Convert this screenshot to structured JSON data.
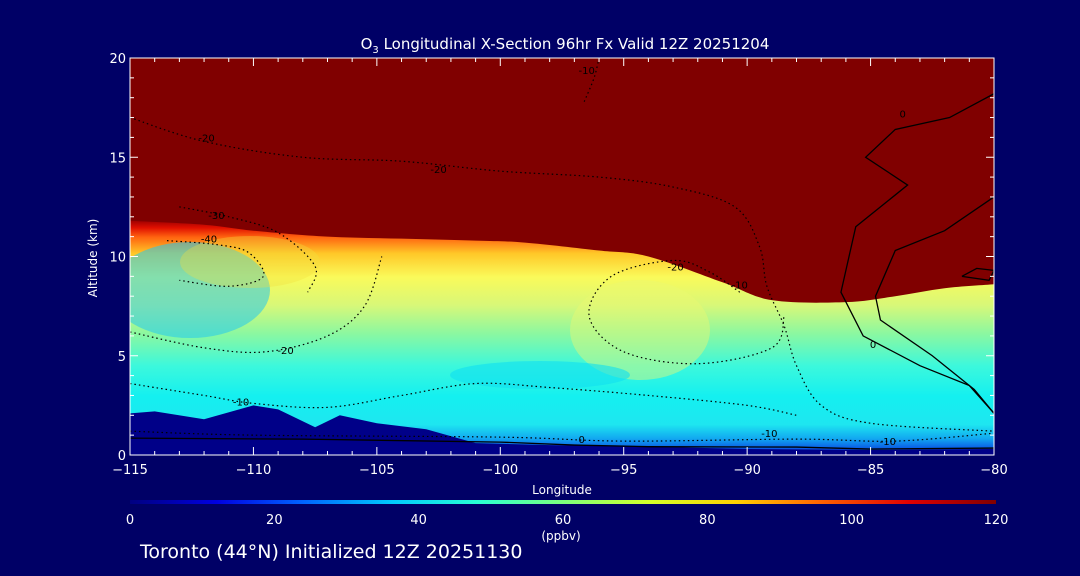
{
  "chart_data": {
    "type": "heatmap",
    "title_prefix": "O",
    "title_sub": "3",
    "title_rest": " Longitudinal X-Section 96hr  Fx Valid 12Z 20251204",
    "xlabel": "Longitude",
    "ylabel": "Altitude (km)",
    "xlim": [
      -115,
      -80
    ],
    "ylim": [
      0,
      20
    ],
    "x_ticks": [
      "-115",
      "-110",
      "-105",
      "-100",
      "-95",
      "-90",
      "-85",
      "-80"
    ],
    "x_tick_values": [
      -115,
      -110,
      -105,
      -100,
      -95,
      -90,
      -85,
      -80
    ],
    "y_ticks": [
      "0",
      "5",
      "10",
      "15",
      "20"
    ],
    "y_tick_values": [
      0,
      5,
      10,
      15,
      20
    ],
    "colorbar": {
      "min": 0,
      "max": 120,
      "ticks": [
        "0",
        "20",
        "40",
        "60",
        "80",
        "100",
        "120"
      ],
      "tick_values": [
        0,
        20,
        40,
        60,
        80,
        100,
        120
      ],
      "label": "(ppbv)"
    },
    "colors": {
      "background": "#000066",
      "terrain": "#000088",
      "stratosphere": "#800000"
    },
    "tropopause_height_km": [
      [
        -115,
        11.8
      ],
      [
        -112,
        11.6
      ],
      [
        -110,
        11.3
      ],
      [
        -107,
        11.0
      ],
      [
        -104,
        10.9
      ],
      [
        -101,
        10.8
      ],
      [
        -99,
        10.7
      ],
      [
        -96,
        10.3
      ],
      [
        -94,
        10.0
      ],
      [
        -91,
        8.7
      ],
      [
        -89,
        7.8
      ],
      [
        -86,
        7.7
      ],
      [
        -84,
        8.0
      ],
      [
        -82,
        8.4
      ],
      [
        -80,
        8.6
      ]
    ],
    "terrain_height_km": [
      [
        -115,
        2.1
      ],
      [
        -114,
        2.2
      ],
      [
        -112,
        1.8
      ],
      [
        -110,
        2.5
      ],
      [
        -109,
        2.3
      ],
      [
        -107.5,
        1.4
      ],
      [
        -106.5,
        2.0
      ],
      [
        -105,
        1.6
      ],
      [
        -103,
        1.3
      ],
      [
        -101,
        0.6
      ],
      [
        -98,
        0.5
      ],
      [
        -95,
        0.45
      ],
      [
        -90,
        0.3
      ],
      [
        -85,
        0.25
      ],
      [
        -80,
        0.3
      ]
    ],
    "contour_labels": [
      {
        "text": "-10",
        "lon": -96.5,
        "alt": 19.2
      },
      {
        "text": "-20",
        "lon": -111.9,
        "alt": 15.8
      },
      {
        "text": "-20",
        "lon": -102.5,
        "alt": 14.2
      },
      {
        "text": "-30",
        "lon": -111.5,
        "alt": 11.9
      },
      {
        "text": "-40",
        "lon": -111.8,
        "alt": 10.7
      },
      {
        "text": "-20",
        "lon": -108.7,
        "alt": 5.1
      },
      {
        "text": "-10",
        "lon": -110.5,
        "alt": 2.5
      },
      {
        "text": "-20",
        "lon": -92.9,
        "alt": 9.3
      },
      {
        "text": "-10",
        "lon": -90.3,
        "alt": 8.4
      },
      {
        "text": "0",
        "lon": -83.7,
        "alt": 17.0
      },
      {
        "text": "0",
        "lon": -84.9,
        "alt": 5.4
      },
      {
        "text": "0",
        "lon": -96.7,
        "alt": 0.6
      },
      {
        "text": "-10",
        "lon": -89.1,
        "alt": 0.9
      },
      {
        "text": "-10",
        "lon": -84.3,
        "alt": 0.5
      }
    ]
  },
  "footer": "Toronto (44°N) Initialized 12Z 20251130"
}
